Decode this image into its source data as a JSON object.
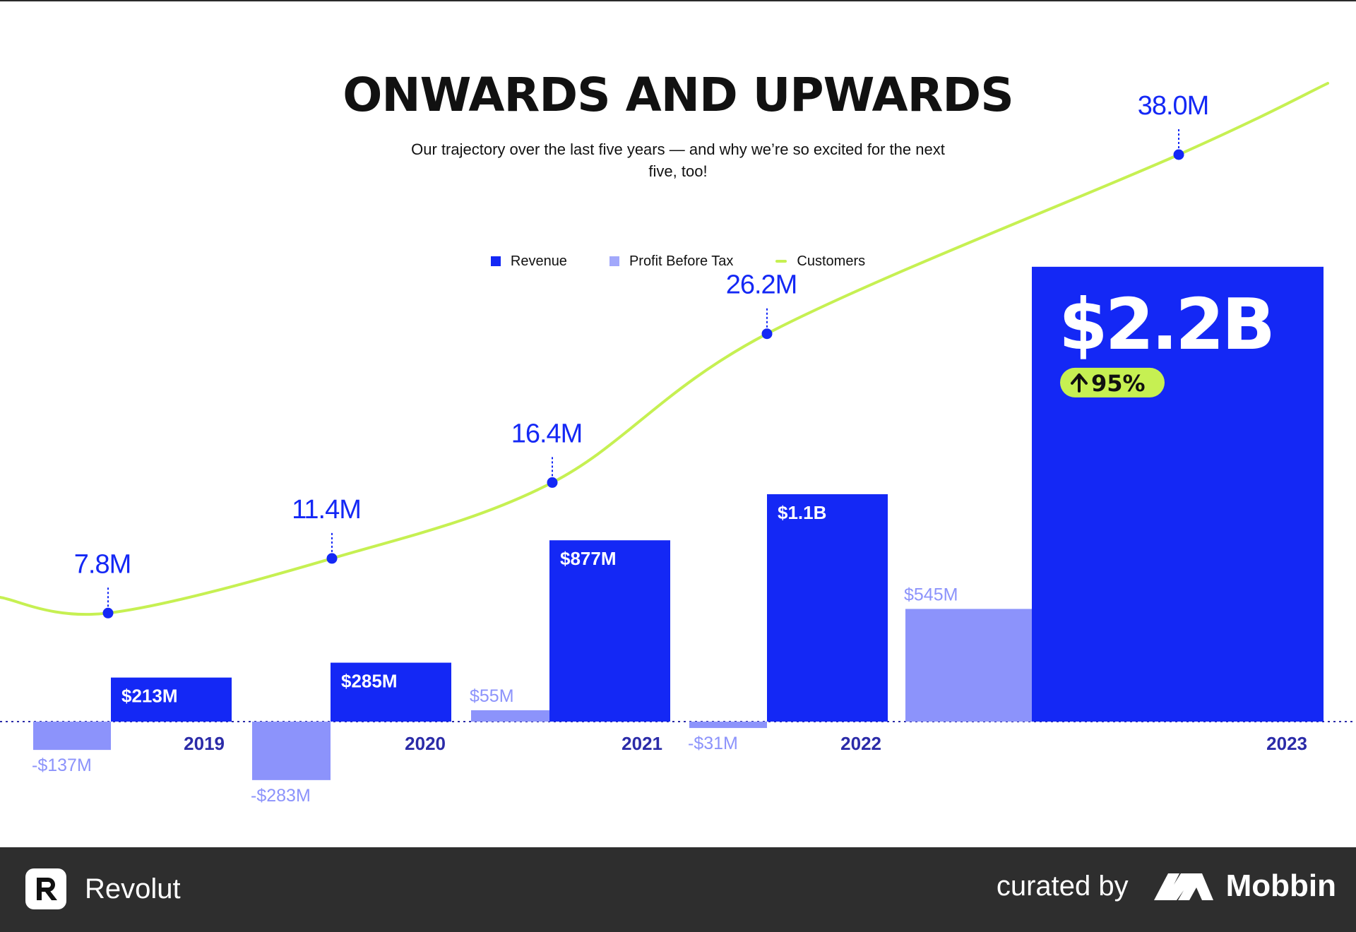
{
  "header": {
    "title": "ONWARDS AND UPWARDS",
    "subtitle": "Our trajectory over the last five years — and why we’re so excited for the next five, too!"
  },
  "colors": {
    "revenue": "#1428f5",
    "profit": "#8c93fb",
    "customers": "#c6f052",
    "axis": "#2b2ba8",
    "badge_bg": "#c6f052",
    "footer_bg": "#2e2e2e"
  },
  "chart_data": {
    "type": "bar",
    "categories": [
      "2019",
      "2020",
      "2021",
      "2022",
      "2023"
    ],
    "series": [
      {
        "name": "Revenue",
        "type": "bar",
        "values": [
          213,
          285,
          877,
          1100,
          2200
        ],
        "labels": [
          "$213M",
          "$285M",
          "$877M",
          "$1.1B",
          "$2.2B"
        ]
      },
      {
        "name": "Profit Before Tax",
        "type": "bar",
        "values": [
          -137,
          -283,
          55,
          -31,
          545
        ],
        "labels": [
          "-$137M",
          "-$283M",
          "$55M",
          "-$31M",
          "$545M"
        ]
      },
      {
        "name": "Customers",
        "type": "line",
        "values": [
          7.8,
          11.4,
          16.4,
          26.2,
          38.0
        ],
        "labels": [
          "7.8M",
          "11.4M",
          "16.4M",
          "26.2M",
          "38.0M"
        ]
      }
    ],
    "highlight": {
      "category": "2023",
      "change": "95%"
    },
    "legend_position": "top-center",
    "grid": false
  },
  "footer": {
    "brand": "Revolut",
    "curated_label": "curated by",
    "curator": "Mobbin",
    "brand_icon": "revolut-r-icon",
    "curator_icon": "mobbin-logo-icon"
  }
}
